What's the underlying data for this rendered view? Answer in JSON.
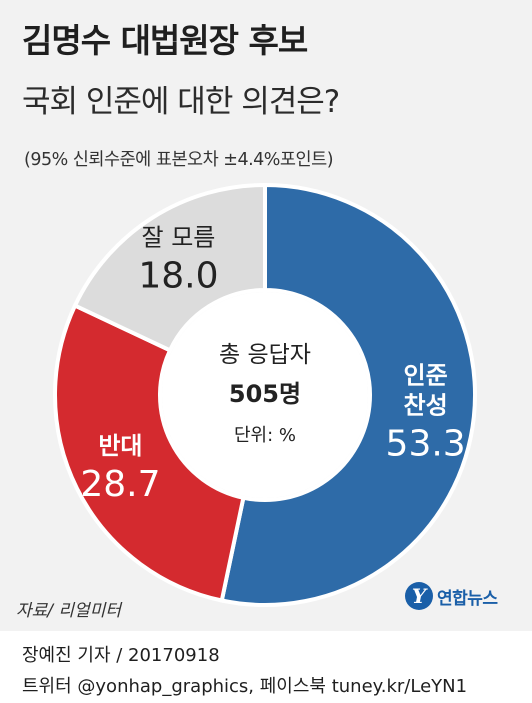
{
  "title": "김명수 대법원장 후보",
  "subtitle": "국회 인준에 대한 의견은?",
  "note": "(95% 신뢰수준에 표본오차 ±4.4%포인트)",
  "chart_data": {
    "type": "pie",
    "title": "김명수 대법원장 후보 국회 인준에 대한 의견은?",
    "categories": [
      "인준 찬성",
      "반대",
      "잘 모름"
    ],
    "values": [
      53.3,
      28.7,
      18.0
    ],
    "value_labels": [
      "53.3",
      "28.7",
      "18.0"
    ],
    "category_lines": [
      [
        "인준",
        "찬성"
      ],
      [
        "반대"
      ],
      [
        "잘 모름"
      ]
    ],
    "colors": [
      "#2e6ba8",
      "#d42a2f",
      "#dcdcdc"
    ],
    "text_colors": [
      "#ffffff",
      "#ffffff",
      "#222222"
    ],
    "donut": true
  },
  "center": {
    "label": "총 응답자",
    "count": "505명",
    "unit": "단위: %"
  },
  "source": "자료/ 리얼미터",
  "logo": {
    "text": "연합뉴스",
    "mark": "Y"
  },
  "credits": {
    "line1": "장예진 기자 / 20170918",
    "line2": "트위터 @yonhap_graphics, 페이스북 tuney.kr/LeYN1"
  }
}
